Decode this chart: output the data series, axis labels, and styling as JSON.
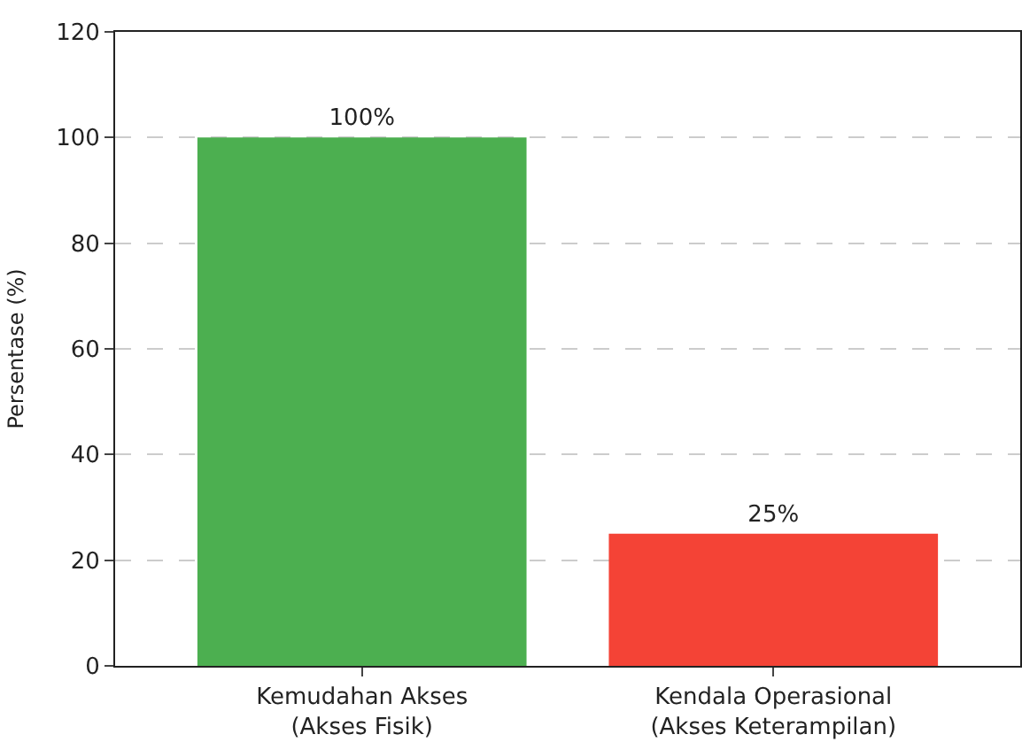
{
  "chart_data": {
    "type": "bar",
    "ylabel": "Persentase (%)",
    "categories": [
      "Kemudahan Akses\n(Akses Fisik)",
      "Kendala Operasional\n(Akses Keterampilan)"
    ],
    "values": [
      100,
      25
    ],
    "colors": [
      "#4caf50",
      "#f44336"
    ],
    "value_labels": [
      "100%",
      "25%"
    ],
    "ylim": [
      0,
      120
    ],
    "yticks": [
      0,
      20,
      40,
      60,
      80,
      100,
      120
    ],
    "grid": "y"
  }
}
